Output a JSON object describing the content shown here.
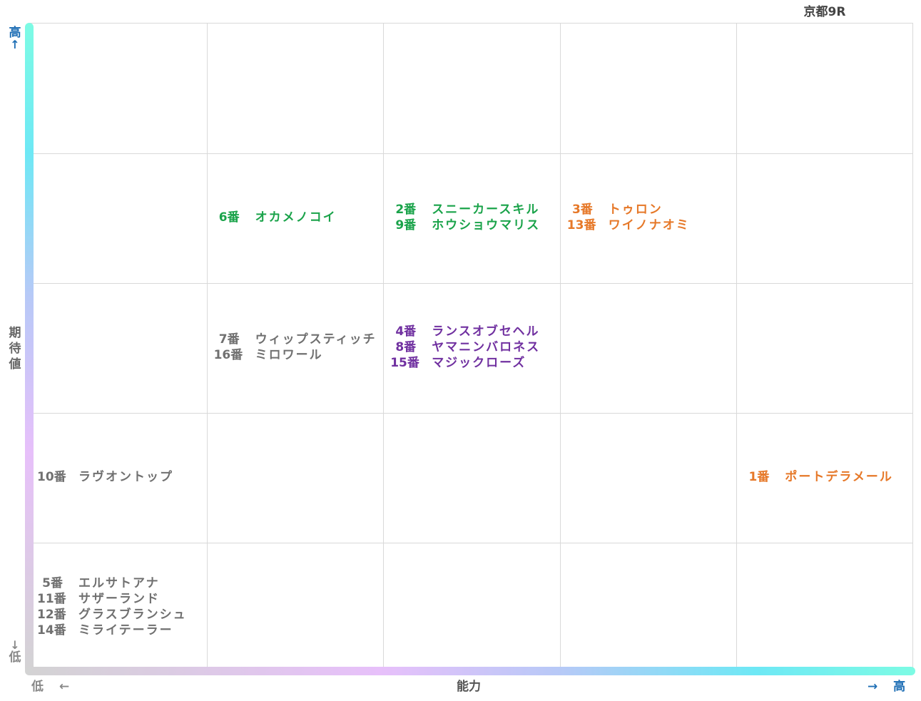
{
  "race_title": "京都9R",
  "axes": {
    "y_label": "期待値",
    "y_high": "高",
    "y_low": "低",
    "x_label": "能力",
    "x_high": "高",
    "x_low": "低",
    "up_arrow": "↑",
    "down_arrow": "↓",
    "left_arrow": "←",
    "right_arrow": "→"
  },
  "colors": {
    "green": "#1aa34a",
    "orange": "#e67828",
    "purple": "#7030a0",
    "gray": "#707070",
    "blue": "#1f6fb5"
  },
  "chart_data": {
    "type": "table",
    "columns": 5,
    "rows": 5,
    "cells": [
      {
        "row": 1,
        "col": 1,
        "color": "green",
        "horses": [
          {
            "num": "6番",
            "name": "オカメノコイ"
          }
        ]
      },
      {
        "row": 1,
        "col": 2,
        "color": "green",
        "horses": [
          {
            "num": "2番",
            "name": "スニーカースキル"
          },
          {
            "num": "9番",
            "name": "ホウショウマリス"
          }
        ]
      },
      {
        "row": 1,
        "col": 3,
        "color": "orange",
        "horses": [
          {
            "num": "3番",
            "name": "トゥロン"
          },
          {
            "num": "13番",
            "name": "ワイノナオミ"
          }
        ]
      },
      {
        "row": 2,
        "col": 1,
        "color": "gray",
        "horses": [
          {
            "num": "7番",
            "name": "ウィップスティッチ"
          },
          {
            "num": "16番",
            "name": "ミロワール"
          }
        ]
      },
      {
        "row": 2,
        "col": 2,
        "color": "purple",
        "horses": [
          {
            "num": "4番",
            "name": "ランスオブセヘル"
          },
          {
            "num": "8番",
            "name": "ヤマニンバロネス"
          },
          {
            "num": "15番",
            "name": "マジックローズ"
          }
        ]
      },
      {
        "row": 3,
        "col": 0,
        "color": "gray",
        "horses": [
          {
            "num": "10番",
            "name": "ラヴオントップ"
          }
        ]
      },
      {
        "row": 3,
        "col": 4,
        "color": "orange",
        "horses": [
          {
            "num": "1番",
            "name": "ポートデラメール"
          }
        ]
      },
      {
        "row": 4,
        "col": 0,
        "color": "gray",
        "horses": [
          {
            "num": "5番",
            "name": "エルサトアナ"
          },
          {
            "num": "11番",
            "name": "サザーランド"
          },
          {
            "num": "12番",
            "name": "グラスブランシュ"
          },
          {
            "num": "14番",
            "name": "ミライテーラー"
          }
        ]
      }
    ]
  }
}
